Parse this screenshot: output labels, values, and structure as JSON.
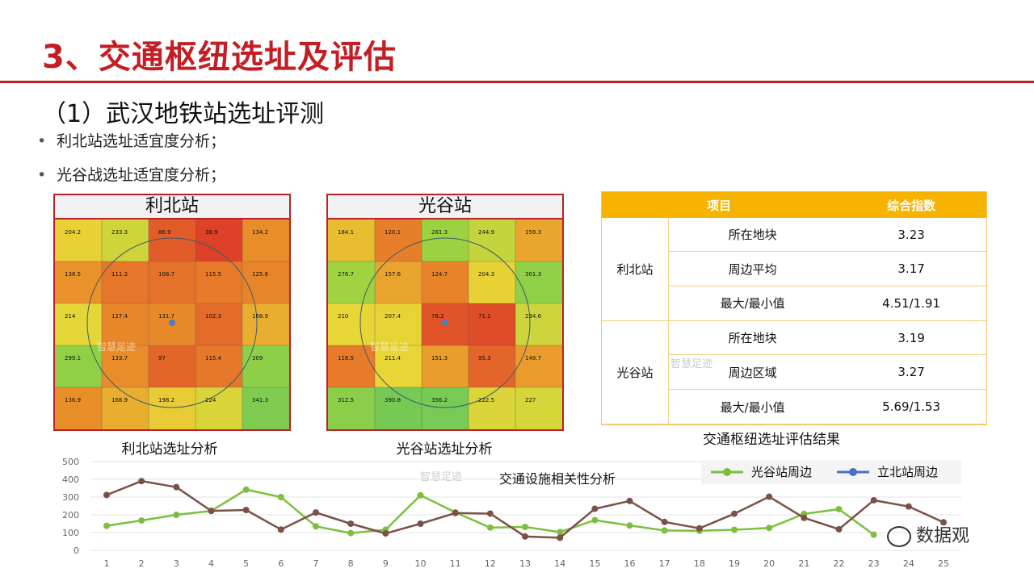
{
  "slide": {
    "title": "3、交通枢纽选址及评估",
    "subtitle": "（1）武汉地铁站选址评测",
    "bullets": [
      "利北站选址适宜度分析；",
      "光谷战选址适宜度分析；"
    ],
    "bullet_glyph": "•"
  },
  "maps": [
    {
      "header": "利北站",
      "caption": "利北站选址分析",
      "watermark": "智慧足迹",
      "cell_values": [
        "204.2",
        "233.3",
        "86.9",
        "38.9",
        "134.2",
        "138.5",
        "111.3",
        "108.7",
        "115.5",
        "125.6",
        "214",
        "127.4",
        "131.7",
        "102.3",
        "168.9",
        "299.1",
        "133.7",
        "97",
        "115.4",
        "309",
        "136.9",
        "168.9",
        "198.2",
        "224",
        "341.3"
      ]
    },
    {
      "header": "光谷站",
      "caption": "光谷站选址分析",
      "watermark": "智慧足迹",
      "cell_values": [
        "184.1",
        "120.1",
        "281.3",
        "244.9",
        "159.3",
        "276.7",
        "157.6",
        "124.7",
        "204.3",
        "301.3",
        "210",
        "207.4",
        "78.2",
        "71.1",
        "234.6",
        "116.5",
        "211.4",
        "151.3",
        "95.3",
        "149.7",
        "312.5",
        "390.8",
        "356.2",
        "222.5",
        "227"
      ]
    }
  ],
  "evaluation": {
    "headers": [
      "项目",
      "综合指数"
    ],
    "groups": [
      {
        "station": "利北站",
        "rows": [
          {
            "item": "所在地块",
            "value": "3.23"
          },
          {
            "item": "周边平均",
            "value": "3.17"
          },
          {
            "item": "最大/最小值",
            "value": "4.51/1.91"
          }
        ]
      },
      {
        "station": "光谷站",
        "rows": [
          {
            "item": "所在地块",
            "value": "3.19"
          },
          {
            "item": "周边区域",
            "value": "3.27"
          },
          {
            "item": "最大/最小值",
            "value": "5.69/1.53"
          }
        ]
      }
    ],
    "caption": "交通枢纽选址评估结果"
  },
  "brand": {
    "wechat_label": "数据观",
    "watermark": "智慧足迹"
  },
  "colors": {
    "title_red": "#c41e24",
    "table_header": "#f6b400",
    "series_green": "#7cbf3f",
    "series_brown": "#7b5147",
    "legend_blue": "#4472c4"
  },
  "chart_data": {
    "type": "line",
    "title": "交通设施相关性分析",
    "x": [
      1,
      2,
      3,
      4,
      5,
      6,
      7,
      8,
      9,
      10,
      11,
      12,
      13,
      14,
      15,
      16,
      17,
      18,
      19,
      20,
      21,
      22,
      23,
      24,
      25
    ],
    "ylim": [
      0,
      500
    ],
    "yticks": [
      0,
      100,
      200,
      300,
      400,
      500
    ],
    "grid": true,
    "legend_position": "top-right",
    "series": [
      {
        "name": "光谷站周边",
        "color": "#7cbf3f",
        "legend_marker": "#7cbf3f",
        "values": [
          138,
          168,
          200,
          222,
          342,
          300,
          135,
          97,
          116,
          310,
          214,
          128,
          132,
          103,
          170,
          140,
          112,
          110,
          116,
          126,
          205,
          232,
          88,
          null,
          null
        ]
      },
      {
        "name": "立北站周边",
        "color": "#7b5147",
        "legend_marker": "#4472c4",
        "values": [
          312,
          390,
          356,
          222,
          227,
          117,
          213,
          150,
          95,
          150,
          210,
          207,
          78,
          71,
          234,
          278,
          160,
          124,
          206,
          302,
          183,
          119,
          282,
          247,
          158
        ]
      }
    ]
  }
}
